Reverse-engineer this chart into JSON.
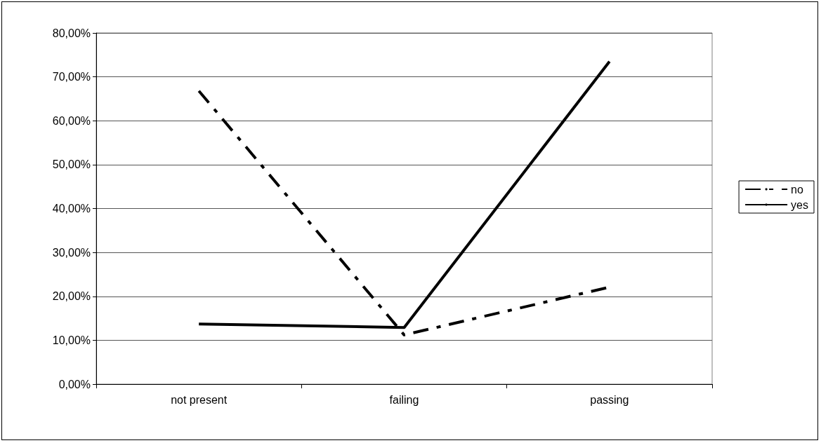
{
  "chart_data": {
    "type": "line",
    "categories": [
      "not present",
      "failing",
      "passing"
    ],
    "series": [
      {
        "name": "no",
        "color": "#000000",
        "line_style": "dashed",
        "values": [
          66.8,
          11.2,
          22.1
        ]
      },
      {
        "name": "yes",
        "color": "#000000",
        "line_style": "solid",
        "values": [
          13.7,
          12.9,
          73.5
        ]
      }
    ],
    "ylim": [
      0,
      80
    ],
    "yticks": [
      {
        "value": 0,
        "label": "0,00%"
      },
      {
        "value": 10,
        "label": "10,00%"
      },
      {
        "value": 20,
        "label": "20,00%"
      },
      {
        "value": 30,
        "label": "30,00%"
      },
      {
        "value": 40,
        "label": "40,00%"
      },
      {
        "value": 50,
        "label": "50,00%"
      },
      {
        "value": 60,
        "label": "60,00%"
      },
      {
        "value": 70,
        "label": "70,00%"
      },
      {
        "value": 80,
        "label": "80,00%"
      }
    ],
    "grid": "y",
    "legend": "right",
    "marker": "none"
  }
}
